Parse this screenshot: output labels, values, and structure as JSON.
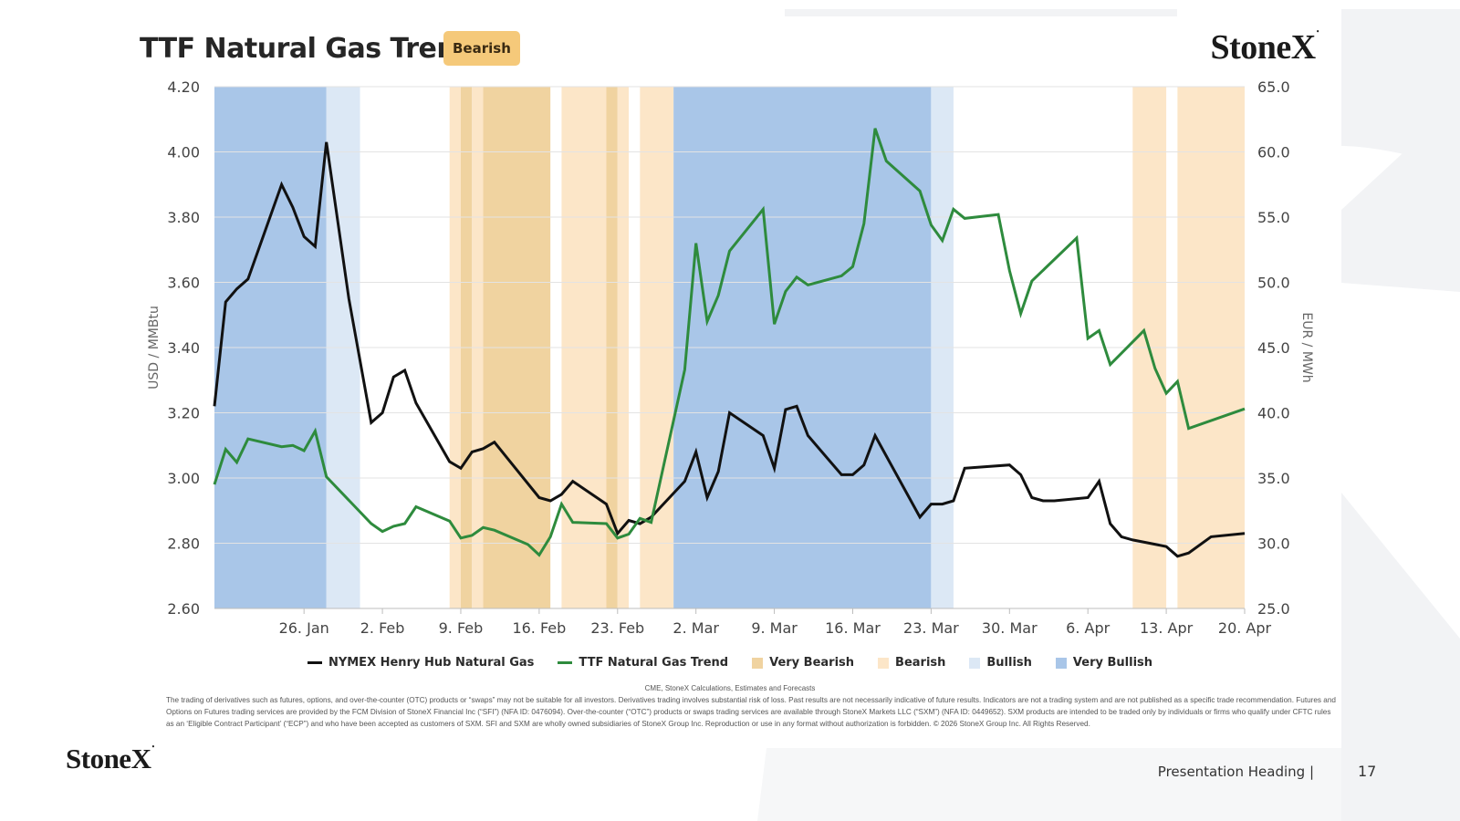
{
  "header": {
    "title": "TTF Natural Gas Trend",
    "badge": "Bearish",
    "logo": "StoneX"
  },
  "footer": {
    "source": "CME, StoneX Calculations, Estimates and Forecasts",
    "disclaimer": "The trading of derivatives such as futures, options, and over-the-counter (OTC) products or “swaps” may not be suitable for all investors. Derivatives trading involves substantial risk of loss. Past results are not necessarily indicative of future results. Indicators are not a trading system and are not published as a specific trade recommendation. Futures and Options on Futures trading services are provided by the FCM Division of StoneX Financial Inc (“SFI”) (NFA ID: 0476094). Over-the-counter (“OTC”) products or swaps trading services are available through StoneX Markets LLC (“SXM”) (NFA ID: 0449652). SXM products are intended to be traded only by individuals or firms who qualify under CFTC rules as an ‘Eligible Contract Participant’ (“ECP”) and who have been accepted as customers of SXM. SFI and SXM are wholly owned subsidiaries of StoneX Group Inc. Reproduction or use in any format without authorization is forbidden. © 2026 StoneX Group Inc. All Rights Reserved.",
    "heading": "Presentation Heading |",
    "page_number": "17",
    "logo": "StoneX"
  },
  "chart_data": {
    "type": "line",
    "x_range": [
      "2026-01-18",
      "2026-04-20"
    ],
    "y_left": {
      "label": "USD / MMBtu",
      "range": [
        2.6,
        4.2
      ],
      "ticks": [
        "2.60",
        "2.80",
        "3.00",
        "3.20",
        "3.40",
        "3.60",
        "3.80",
        "4.00",
        "4.20"
      ]
    },
    "y_right": {
      "label": "EUR / MWh",
      "range": [
        25,
        65
      ],
      "ticks": [
        "25.0",
        "30.0",
        "35.0",
        "40.0",
        "45.0",
        "50.0",
        "55.0",
        "60.0",
        "65.0"
      ]
    },
    "x_ticks": [
      {
        "date": "2026-01-26",
        "label": "26. Jan"
      },
      {
        "date": "2026-02-02",
        "label": "2. Feb"
      },
      {
        "date": "2026-02-09",
        "label": "9. Feb"
      },
      {
        "date": "2026-02-16",
        "label": "16. Feb"
      },
      {
        "date": "2026-02-23",
        "label": "23. Feb"
      },
      {
        "date": "2026-03-02",
        "label": "2. Mar"
      },
      {
        "date": "2026-03-09",
        "label": "9. Mar"
      },
      {
        "date": "2026-03-16",
        "label": "16. Mar"
      },
      {
        "date": "2026-03-23",
        "label": "23. Mar"
      },
      {
        "date": "2026-03-30",
        "label": "30. Mar"
      },
      {
        "date": "2026-04-06",
        "label": "6. Apr"
      },
      {
        "date": "2026-04-13",
        "label": "13. Apr"
      },
      {
        "date": "2026-04-20",
        "label": "20. Apr"
      }
    ],
    "regimes": [
      {
        "start": "2026-01-18",
        "end": "2026-01-28",
        "type": "very_bullish"
      },
      {
        "start": "2026-01-28",
        "end": "2026-01-31",
        "type": "bullish"
      },
      {
        "start": "2026-02-08",
        "end": "2026-02-09",
        "type": "bearish"
      },
      {
        "start": "2026-02-09",
        "end": "2026-02-10",
        "type": "very_bearish"
      },
      {
        "start": "2026-02-10",
        "end": "2026-02-11",
        "type": "bearish"
      },
      {
        "start": "2026-02-11",
        "end": "2026-02-17",
        "type": "very_bearish"
      },
      {
        "start": "2026-02-18",
        "end": "2026-02-22",
        "type": "bearish"
      },
      {
        "start": "2026-02-22",
        "end": "2026-02-23",
        "type": "very_bearish"
      },
      {
        "start": "2026-02-23",
        "end": "2026-02-24",
        "type": "bearish"
      },
      {
        "start": "2026-02-25",
        "end": "2026-02-28",
        "type": "bearish"
      },
      {
        "start": "2026-02-28",
        "end": "2026-03-23",
        "type": "very_bullish"
      },
      {
        "start": "2026-03-23",
        "end": "2026-03-25",
        "type": "bullish"
      },
      {
        "start": "2026-04-10",
        "end": "2026-04-13",
        "type": "bearish"
      },
      {
        "start": "2026-04-14",
        "end": "2026-04-20",
        "type": "bearish"
      }
    ],
    "regime_colors": {
      "very_bearish": "#f0d3a0",
      "bearish": "#fce6c8",
      "bullish": "#dce8f5",
      "very_bullish": "#a9c6e8"
    },
    "series": [
      {
        "name": "NYMEX Henry Hub Natural Gas",
        "axis": "left",
        "color": "#111111",
        "points": [
          [
            "2026-01-18",
            3.22
          ],
          [
            "2026-01-19",
            3.54
          ],
          [
            "2026-01-20",
            3.58
          ],
          [
            "2026-01-21",
            3.61
          ],
          [
            "2026-01-24",
            3.9
          ],
          [
            "2026-01-25",
            3.83
          ],
          [
            "2026-01-26",
            3.74
          ],
          [
            "2026-01-27",
            3.71
          ],
          [
            "2026-01-28",
            4.03
          ],
          [
            "2026-01-30",
            3.55
          ],
          [
            "2026-02-01",
            3.17
          ],
          [
            "2026-02-02",
            3.2
          ],
          [
            "2026-02-03",
            3.31
          ],
          [
            "2026-02-04",
            3.33
          ],
          [
            "2026-02-05",
            3.23
          ],
          [
            "2026-02-08",
            3.05
          ],
          [
            "2026-02-09",
            3.03
          ],
          [
            "2026-02-10",
            3.08
          ],
          [
            "2026-02-11",
            3.09
          ],
          [
            "2026-02-12",
            3.11
          ],
          [
            "2026-02-16",
            2.94
          ],
          [
            "2026-02-17",
            2.93
          ],
          [
            "2026-02-18",
            2.95
          ],
          [
            "2026-02-19",
            2.99
          ],
          [
            "2026-02-22",
            2.92
          ],
          [
            "2026-02-23",
            2.83
          ],
          [
            "2026-02-24",
            2.87
          ],
          [
            "2026-02-25",
            2.86
          ],
          [
            "2026-02-26",
            2.88
          ],
          [
            "2026-03-01",
            2.99
          ],
          [
            "2026-03-02",
            3.08
          ],
          [
            "2026-03-03",
            2.94
          ],
          [
            "2026-03-04",
            3.02
          ],
          [
            "2026-03-05",
            3.2
          ],
          [
            "2026-03-08",
            3.13
          ],
          [
            "2026-03-09",
            3.03
          ],
          [
            "2026-03-10",
            3.21
          ],
          [
            "2026-03-11",
            3.22
          ],
          [
            "2026-03-12",
            3.13
          ],
          [
            "2026-03-15",
            3.01
          ],
          [
            "2026-03-16",
            3.01
          ],
          [
            "2026-03-17",
            3.04
          ],
          [
            "2026-03-18",
            3.13
          ],
          [
            "2026-03-22",
            2.88
          ],
          [
            "2026-03-23",
            2.92
          ],
          [
            "2026-03-24",
            2.92
          ],
          [
            "2026-03-25",
            2.93
          ],
          [
            "2026-03-26",
            3.03
          ],
          [
            "2026-03-30",
            3.04
          ],
          [
            "2026-03-31",
            3.01
          ],
          [
            "2026-04-01",
            2.94
          ],
          [
            "2026-04-02",
            2.93
          ],
          [
            "2026-04-03",
            2.93
          ],
          [
            "2026-04-06",
            2.94
          ],
          [
            "2026-04-07",
            2.99
          ],
          [
            "2026-04-08",
            2.86
          ],
          [
            "2026-04-09",
            2.82
          ],
          [
            "2026-04-10",
            2.81
          ],
          [
            "2026-04-13",
            2.79
          ],
          [
            "2026-04-14",
            2.76
          ],
          [
            "2026-04-15",
            2.77
          ],
          [
            "2026-04-17",
            2.82
          ],
          [
            "2026-04-20",
            2.83
          ]
        ]
      },
      {
        "name": "TTF Natural Gas Trend",
        "axis": "right",
        "color": "#2e8b3d",
        "points": [
          [
            "2026-01-18",
            34.5
          ],
          [
            "2026-01-19",
            37.2
          ],
          [
            "2026-01-20",
            36.2
          ],
          [
            "2026-01-21",
            38.0
          ],
          [
            "2026-01-24",
            37.4
          ],
          [
            "2026-01-25",
            37.5
          ],
          [
            "2026-01-26",
            37.1
          ],
          [
            "2026-01-27",
            38.6
          ],
          [
            "2026-01-28",
            35.1
          ],
          [
            "2026-02-01",
            31.5
          ],
          [
            "2026-02-02",
            30.9
          ],
          [
            "2026-02-03",
            31.3
          ],
          [
            "2026-02-04",
            31.5
          ],
          [
            "2026-02-05",
            32.8
          ],
          [
            "2026-02-08",
            31.7
          ],
          [
            "2026-02-09",
            30.4
          ],
          [
            "2026-02-10",
            30.6
          ],
          [
            "2026-02-11",
            31.2
          ],
          [
            "2026-02-12",
            31.0
          ],
          [
            "2026-02-15",
            29.9
          ],
          [
            "2026-02-16",
            29.1
          ],
          [
            "2026-02-17",
            30.5
          ],
          [
            "2026-02-18",
            33.0
          ],
          [
            "2026-02-19",
            31.6
          ],
          [
            "2026-02-22",
            31.5
          ],
          [
            "2026-02-23",
            30.4
          ],
          [
            "2026-02-24",
            30.7
          ],
          [
            "2026-02-25",
            31.9
          ],
          [
            "2026-02-26",
            31.6
          ],
          [
            "2026-03-01",
            43.3
          ],
          [
            "2026-03-02",
            53.0
          ],
          [
            "2026-03-03",
            47.0
          ],
          [
            "2026-03-04",
            49.0
          ],
          [
            "2026-03-05",
            52.4
          ],
          [
            "2026-03-08",
            55.6
          ],
          [
            "2026-03-09",
            46.8
          ],
          [
            "2026-03-10",
            49.3
          ],
          [
            "2026-03-11",
            50.4
          ],
          [
            "2026-03-12",
            49.8
          ],
          [
            "2026-03-15",
            50.5
          ],
          [
            "2026-03-16",
            51.2
          ],
          [
            "2026-03-17",
            54.5
          ],
          [
            "2026-03-18",
            61.8
          ],
          [
            "2026-03-19",
            59.3
          ],
          [
            "2026-03-22",
            57.0
          ],
          [
            "2026-03-23",
            54.4
          ],
          [
            "2026-03-24",
            53.2
          ],
          [
            "2026-03-25",
            55.6
          ],
          [
            "2026-03-26",
            54.9
          ],
          [
            "2026-03-29",
            55.2
          ],
          [
            "2026-03-30",
            50.9
          ],
          [
            "2026-03-31",
            47.6
          ],
          [
            "2026-04-01",
            50.1
          ],
          [
            "2026-04-05",
            53.4
          ],
          [
            "2026-04-06",
            45.7
          ],
          [
            "2026-04-07",
            46.3
          ],
          [
            "2026-04-08",
            43.7
          ],
          [
            "2026-04-11",
            46.3
          ],
          [
            "2026-04-12",
            43.4
          ],
          [
            "2026-04-13",
            41.5
          ],
          [
            "2026-04-14",
            42.4
          ],
          [
            "2026-04-15",
            38.8
          ],
          [
            "2026-04-20",
            40.3
          ]
        ]
      }
    ],
    "legend": [
      {
        "label": "NYMEX Henry Hub Natural Gas",
        "kind": "line",
        "color": "#111111"
      },
      {
        "label": "TTF Natural Gas Trend",
        "kind": "line",
        "color": "#2e8b3d"
      },
      {
        "label": "Very Bearish",
        "kind": "box",
        "color": "#f0d3a0"
      },
      {
        "label": "Bearish",
        "kind": "box",
        "color": "#fce6c8"
      },
      {
        "label": "Bullish",
        "kind": "box",
        "color": "#dce8f5"
      },
      {
        "label": "Very Bullish",
        "kind": "box",
        "color": "#a9c6e8"
      }
    ],
    "legend_position": "bottom",
    "grid": true
  }
}
